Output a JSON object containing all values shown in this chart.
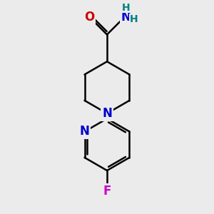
{
  "background_color": "#ebebeb",
  "atom_colors": {
    "C": "#000000",
    "N": "#0000cc",
    "O": "#cc0000",
    "F": "#cc00cc",
    "H": "#008080"
  },
  "bond_color": "#000000",
  "bond_width": 1.8,
  "figsize": [
    3.0,
    3.0
  ],
  "dpi": 100
}
